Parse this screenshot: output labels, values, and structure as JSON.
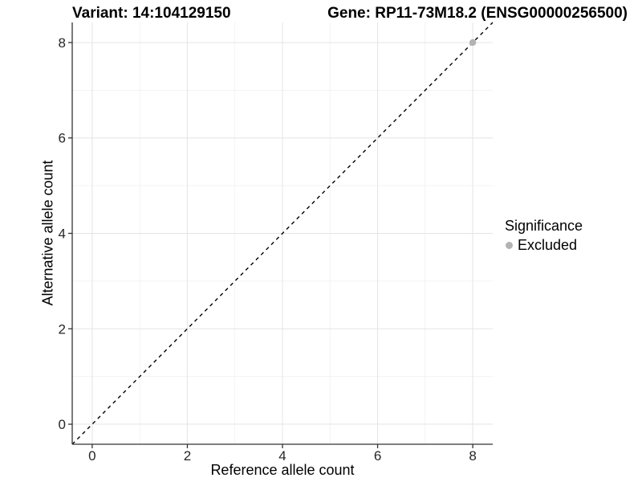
{
  "titles": {
    "variant": "Variant: 14:104129150",
    "gene": "Gene: RP11-73M18.2 (ENSG00000256500)"
  },
  "axes": {
    "xlabel": "Reference allele count",
    "ylabel": "Alternative allele count"
  },
  "legend": {
    "title": "Significance",
    "entries": [
      {
        "label": "Excluded",
        "color": "#b3b3b3"
      }
    ]
  },
  "chart_data": {
    "type": "scatter",
    "title": "Variant: 14:104129150    Gene: RP11-73M18.2 (ENSG00000256500)",
    "xlabel": "Reference allele count",
    "ylabel": "Alternative allele count",
    "xlim": [
      -0.42,
      8.42
    ],
    "ylim": [
      -0.42,
      8.42
    ],
    "x_major_ticks": [
      0,
      2,
      4,
      6,
      8
    ],
    "x_minor_ticks": [
      1,
      3,
      5,
      7
    ],
    "y_major_ticks": [
      0,
      2,
      4,
      6,
      8
    ],
    "y_minor_ticks": [
      1,
      3,
      5,
      7
    ],
    "x_tick_labels": [
      "0",
      "2",
      "4",
      "6",
      "8"
    ],
    "y_tick_labels": [
      "0",
      "2",
      "4",
      "6",
      "8"
    ],
    "grid": true,
    "legend_position": "right",
    "legend_title": "Significance",
    "series": [
      {
        "name": "Excluded",
        "color": "#b3b3b3",
        "points": [
          {
            "x": 8,
            "y": 8
          }
        ]
      }
    ],
    "reference_line": {
      "kind": "identity",
      "style": "dashed",
      "color": "#000000"
    },
    "style": {
      "grid_major_color": "#e4e4e4",
      "grid_minor_color": "#f0f0f0",
      "axis_line_color": "#333333",
      "tick_color": "#333333",
      "tick_label_color": "#262626",
      "point_radius": 4.2
    }
  }
}
